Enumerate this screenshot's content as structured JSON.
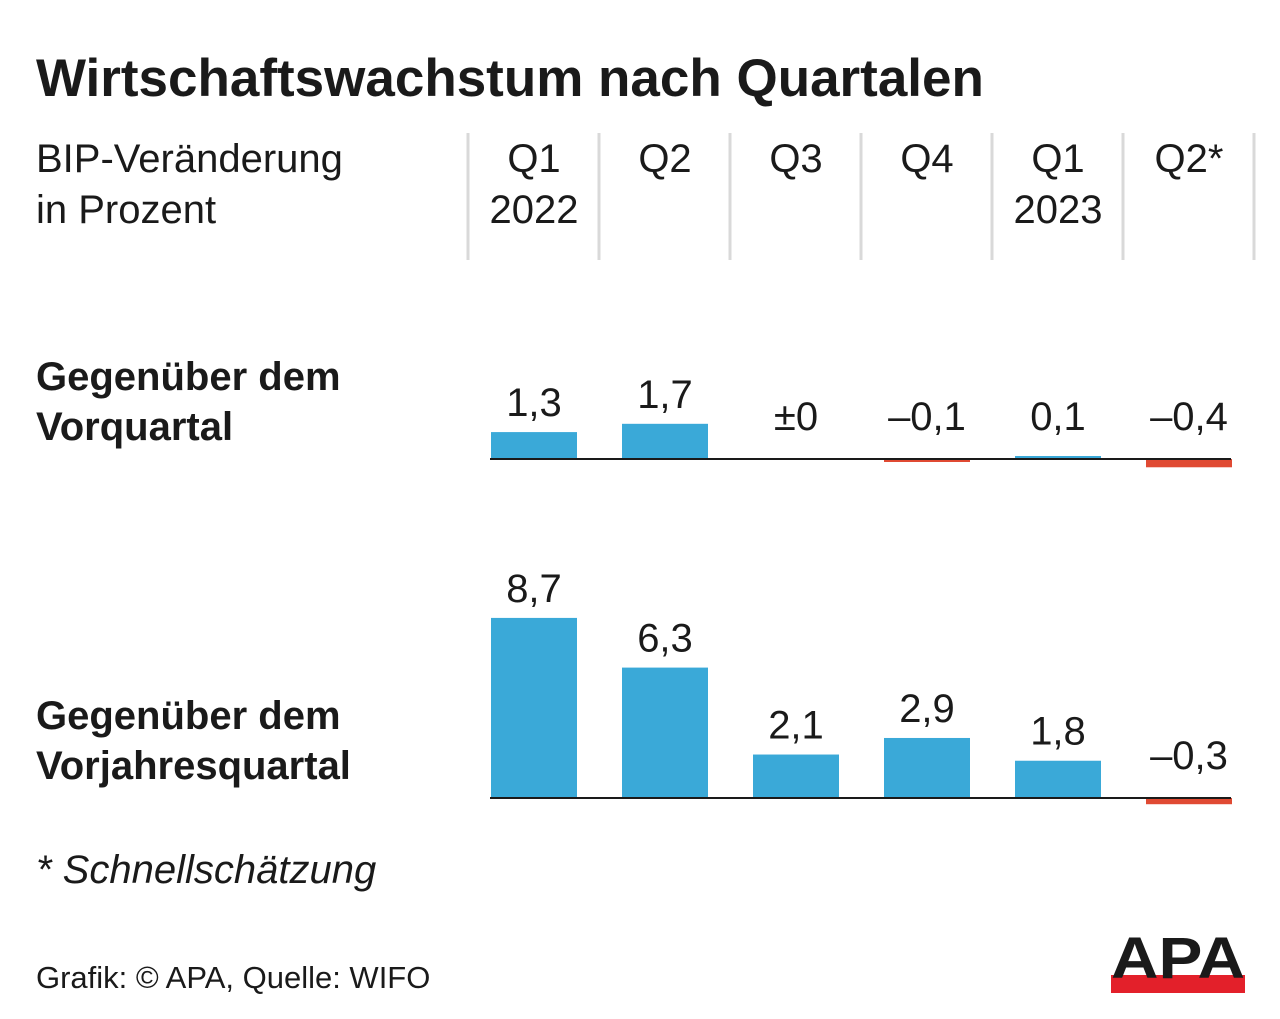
{
  "chart_data": {
    "type": "bar",
    "title": "Wirtschaftswachstum nach Quartalen",
    "subtitle": [
      "BIP-Veränderung",
      "in Prozent"
    ],
    "categories": [
      [
        "Q1",
        "2022"
      ],
      [
        "Q2",
        ""
      ],
      [
        "Q3",
        ""
      ],
      [
        "Q4",
        ""
      ],
      [
        "Q1",
        "2023"
      ],
      [
        "Q2*",
        ""
      ]
    ],
    "series": [
      {
        "name": [
          "Gegenüber dem",
          "Vorquartal"
        ],
        "values": [
          1.3,
          1.7,
          0,
          -0.1,
          0.1,
          -0.4
        ],
        "labels": [
          "1,3",
          "1,7",
          "±0",
          "–0,1",
          "0,1",
          "–0,4"
        ]
      },
      {
        "name": [
          "Gegenüber dem",
          "Vorjahresquartal"
        ],
        "values": [
          8.7,
          6.3,
          2.1,
          2.9,
          1.8,
          -0.3
        ],
        "labels": [
          "8,7",
          "6,3",
          "2,1",
          "2,9",
          "1,8",
          "–0,3"
        ]
      }
    ],
    "colors": {
      "positive": "#3aa9d8",
      "negative": "#e04a33",
      "axis": "#1a1a1a",
      "divider": "#d9d9d9"
    },
    "footnote": "* Schnellschätzung",
    "source": "Grafik: © APA, Quelle: WIFO",
    "logo": "APA"
  }
}
